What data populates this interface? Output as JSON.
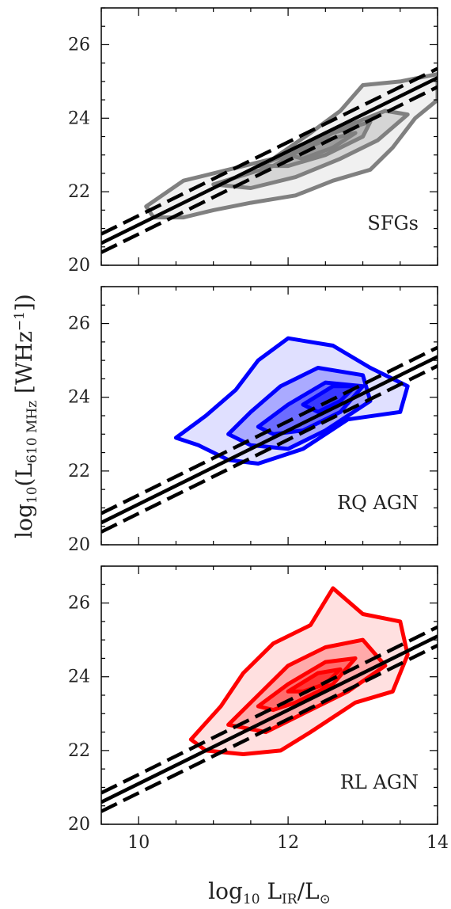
{
  "chart_data": {
    "type": "contour",
    "shared_x_axis": {
      "label": "log10 LIR/L⊙",
      "label_parts": {
        "base": "log",
        "base_sub": "10",
        "main": " L",
        "main_sub": "IR",
        "tail": "/L",
        "tail_sub": "⊙"
      },
      "xlim": [
        9.5,
        14
      ],
      "ticks": [
        10,
        12,
        14
      ],
      "tick_labels": [
        "10",
        "12",
        "14"
      ]
    },
    "shared_y_axis": {
      "label": "log10(L610 MHz [WHz−1])",
      "label_parts": {
        "base": "log",
        "base_sub": "10",
        "open": "(L",
        "main_sub": "610 MHz",
        "unit": " [WHz",
        "unit_sup": "−1",
        "close": "])"
      },
      "ylim": [
        20,
        27
      ],
      "ticks": [
        20,
        22,
        24,
        26
      ],
      "tick_labels": [
        "20",
        "22",
        "24",
        "26"
      ]
    },
    "relation": {
      "style": "solid center line with dashed scatter band",
      "points": [
        [
          9.5,
          20.6
        ],
        [
          14,
          25.1
        ]
      ],
      "band_offset_dex": 0.25
    },
    "panels": [
      {
        "label": "SFGs",
        "color": "#808080",
        "fill_color": "#808080",
        "levels": [
          [
            [
              10.1,
              21.6
            ],
            [
              10.6,
              22.3
            ],
            [
              11.2,
              22.6
            ],
            [
              11.8,
              22.9
            ],
            [
              12.3,
              23.6
            ],
            [
              12.7,
              24.2
            ],
            [
              13.0,
              24.9
            ],
            [
              13.5,
              25.0
            ],
            [
              14.0,
              25.2
            ],
            [
              14.0,
              24.5
            ],
            [
              13.7,
              24.0
            ],
            [
              13.4,
              23.2
            ],
            [
              13.1,
              22.6
            ],
            [
              12.6,
              22.3
            ],
            [
              12.1,
              21.9
            ],
            [
              11.5,
              21.7
            ],
            [
              11.0,
              21.5
            ],
            [
              10.6,
              21.3
            ],
            [
              10.2,
              21.3
            ]
          ],
          [
            [
              11.0,
              22.2
            ],
            [
              11.8,
              22.7
            ],
            [
              12.3,
              23.3
            ],
            [
              12.8,
              23.8
            ],
            [
              13.3,
              24.2
            ],
            [
              13.6,
              24.1
            ],
            [
              13.2,
              23.4
            ],
            [
              12.7,
              22.9
            ],
            [
              12.1,
              22.4
            ],
            [
              11.5,
              22.1
            ]
          ],
          [
            [
              11.6,
              22.7
            ],
            [
              12.1,
              23.1
            ],
            [
              12.6,
              23.6
            ],
            [
              13.1,
              23.9
            ],
            [
              13.0,
              23.5
            ],
            [
              12.5,
              23.0
            ],
            [
              12.0,
              22.7
            ]
          ],
          [
            [
              12.0,
              23.0
            ],
            [
              12.5,
              23.4
            ],
            [
              12.9,
              23.6
            ],
            [
              12.6,
              23.2
            ],
            [
              12.2,
              22.9
            ]
          ]
        ]
      },
      {
        "label": "RQ AGN",
        "color": "#0000ff",
        "fill_color": "#0000ff",
        "levels": [
          [
            [
              10.5,
              22.9
            ],
            [
              10.9,
              23.5
            ],
            [
              11.3,
              24.2
            ],
            [
              11.6,
              25.0
            ],
            [
              12.0,
              25.6
            ],
            [
              12.6,
              25.4
            ],
            [
              13.1,
              24.8
            ],
            [
              13.6,
              24.3
            ],
            [
              13.5,
              23.6
            ],
            [
              12.8,
              23.4
            ],
            [
              12.2,
              22.6
            ],
            [
              11.6,
              22.2
            ],
            [
              11.2,
              22.3
            ],
            [
              10.8,
              22.7
            ]
          ],
          [
            [
              11.2,
              23.0
            ],
            [
              11.5,
              23.6
            ],
            [
              11.9,
              24.3
            ],
            [
              12.4,
              24.8
            ],
            [
              13.0,
              24.6
            ],
            [
              13.1,
              23.9
            ],
            [
              12.5,
              23.1
            ],
            [
              12.0,
              22.6
            ],
            [
              11.5,
              22.7
            ]
          ],
          [
            [
              11.6,
              23.2
            ],
            [
              12.0,
              23.8
            ],
            [
              12.5,
              24.4
            ],
            [
              13.0,
              24.3
            ],
            [
              12.7,
              23.6
            ],
            [
              12.2,
              23.1
            ],
            [
              11.8,
              23.0
            ]
          ],
          [
            [
              12.2,
              23.8
            ],
            [
              12.6,
              24.3
            ],
            [
              12.9,
              24.3
            ],
            [
              12.7,
              23.9
            ],
            [
              12.4,
              23.6
            ]
          ]
        ]
      },
      {
        "label": "RL AGN",
        "color": "#ff0000",
        "fill_color": "#ff0000",
        "levels": [
          [
            [
              10.7,
              22.3
            ],
            [
              11.1,
              23.2
            ],
            [
              11.4,
              24.1
            ],
            [
              11.8,
              24.9
            ],
            [
              12.3,
              25.4
            ],
            [
              12.6,
              26.4
            ],
            [
              13.0,
              25.7
            ],
            [
              13.5,
              25.5
            ],
            [
              13.6,
              24.6
            ],
            [
              13.4,
              23.6
            ],
            [
              12.9,
              23.3
            ],
            [
              12.3,
              22.5
            ],
            [
              11.9,
              22.0
            ],
            [
              11.4,
              21.9
            ],
            [
              10.9,
              22.0
            ]
          ],
          [
            [
              11.2,
              22.7
            ],
            [
              11.6,
              23.5
            ],
            [
              12.0,
              24.3
            ],
            [
              12.5,
              24.8
            ],
            [
              13.0,
              25.0
            ],
            [
              13.3,
              24.3
            ],
            [
              12.8,
              23.6
            ],
            [
              12.2,
              23.0
            ],
            [
              11.7,
              22.5
            ]
          ],
          [
            [
              11.6,
              23.2
            ],
            [
              12.0,
              23.8
            ],
            [
              12.5,
              24.4
            ],
            [
              12.9,
              24.5
            ],
            [
              12.6,
              23.8
            ],
            [
              12.1,
              23.3
            ],
            [
              11.8,
              23.1
            ]
          ],
          [
            [
              12.0,
              23.6
            ],
            [
              12.4,
              24.1
            ],
            [
              12.7,
              24.2
            ],
            [
              12.5,
              23.8
            ],
            [
              12.2,
              23.6
            ]
          ]
        ]
      }
    ]
  }
}
